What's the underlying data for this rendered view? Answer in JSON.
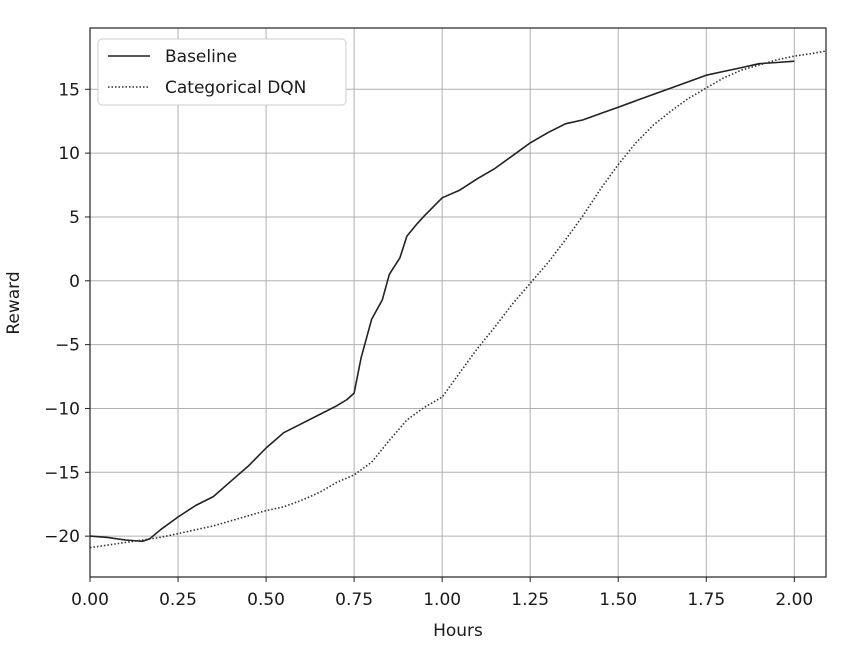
{
  "chart_data": {
    "type": "line",
    "title": "",
    "xlabel": "Hours",
    "ylabel": "Reward",
    "xlim": [
      0.0,
      2.09
    ],
    "ylim": [
      -23.2,
      19.8
    ],
    "grid": true,
    "legend_position": "top-left",
    "x_ticks": [
      0.0,
      0.25,
      0.5,
      0.75,
      1.0,
      1.25,
      1.5,
      1.75,
      2.0
    ],
    "x_tick_labels": [
      "0.00",
      "0.25",
      "0.50",
      "0.75",
      "1.00",
      "1.25",
      "1.50",
      "1.75",
      "2.00"
    ],
    "y_ticks": [
      -20,
      -15,
      -10,
      -5,
      0,
      5,
      10,
      15
    ],
    "y_tick_labels": [
      "−20",
      "−15",
      "−10",
      "−5",
      "0",
      "5",
      "10",
      "15"
    ],
    "series": [
      {
        "name": "Baseline",
        "style": "solid",
        "color": "#222222",
        "x": [
          0.0,
          0.05,
          0.1,
          0.15,
          0.17,
          0.2,
          0.25,
          0.3,
          0.35,
          0.4,
          0.45,
          0.5,
          0.55,
          0.6,
          0.65,
          0.7,
          0.73,
          0.75,
          0.77,
          0.8,
          0.83,
          0.85,
          0.88,
          0.9,
          0.93,
          0.95,
          1.0,
          1.05,
          1.1,
          1.15,
          1.2,
          1.25,
          1.3,
          1.35,
          1.4,
          1.45,
          1.5,
          1.55,
          1.6,
          1.65,
          1.7,
          1.75,
          1.8,
          1.85,
          1.9,
          1.95,
          2.0
        ],
        "y": [
          -20.0,
          -20.1,
          -20.3,
          -20.4,
          -20.2,
          -19.5,
          -18.5,
          -17.6,
          -16.9,
          -15.7,
          -14.5,
          -13.1,
          -11.9,
          -11.2,
          -10.5,
          -9.8,
          -9.3,
          -8.8,
          -6.0,
          -3.0,
          -1.5,
          0.5,
          1.8,
          3.5,
          4.5,
          5.1,
          6.5,
          7.1,
          8.0,
          8.8,
          9.8,
          10.8,
          11.6,
          12.3,
          12.6,
          13.1,
          13.6,
          14.1,
          14.6,
          15.1,
          15.6,
          16.1,
          16.4,
          16.7,
          17.0,
          17.1,
          17.2
        ]
      },
      {
        "name": "Categorical DQN",
        "style": "dotted",
        "color": "#333333",
        "x": [
          0.0,
          0.05,
          0.1,
          0.15,
          0.2,
          0.25,
          0.3,
          0.35,
          0.4,
          0.45,
          0.5,
          0.55,
          0.6,
          0.65,
          0.7,
          0.75,
          0.8,
          0.85,
          0.9,
          0.95,
          1.0,
          1.05,
          1.1,
          1.15,
          1.2,
          1.25,
          1.3,
          1.35,
          1.4,
          1.45,
          1.5,
          1.55,
          1.6,
          1.65,
          1.7,
          1.75,
          1.8,
          1.85,
          1.9,
          1.95,
          2.0,
          2.05,
          2.09
        ],
        "y": [
          -20.9,
          -20.7,
          -20.5,
          -20.3,
          -20.1,
          -19.8,
          -19.5,
          -19.2,
          -18.8,
          -18.4,
          -18.0,
          -17.7,
          -17.2,
          -16.6,
          -15.8,
          -15.2,
          -14.2,
          -12.5,
          -10.9,
          -9.9,
          -9.1,
          -7.2,
          -5.3,
          -3.6,
          -1.8,
          -0.2,
          1.4,
          3.2,
          5.1,
          7.2,
          9.1,
          10.8,
          12.2,
          13.3,
          14.3,
          15.1,
          15.9,
          16.5,
          16.9,
          17.3,
          17.6,
          17.8,
          18.0
        ]
      }
    ]
  }
}
